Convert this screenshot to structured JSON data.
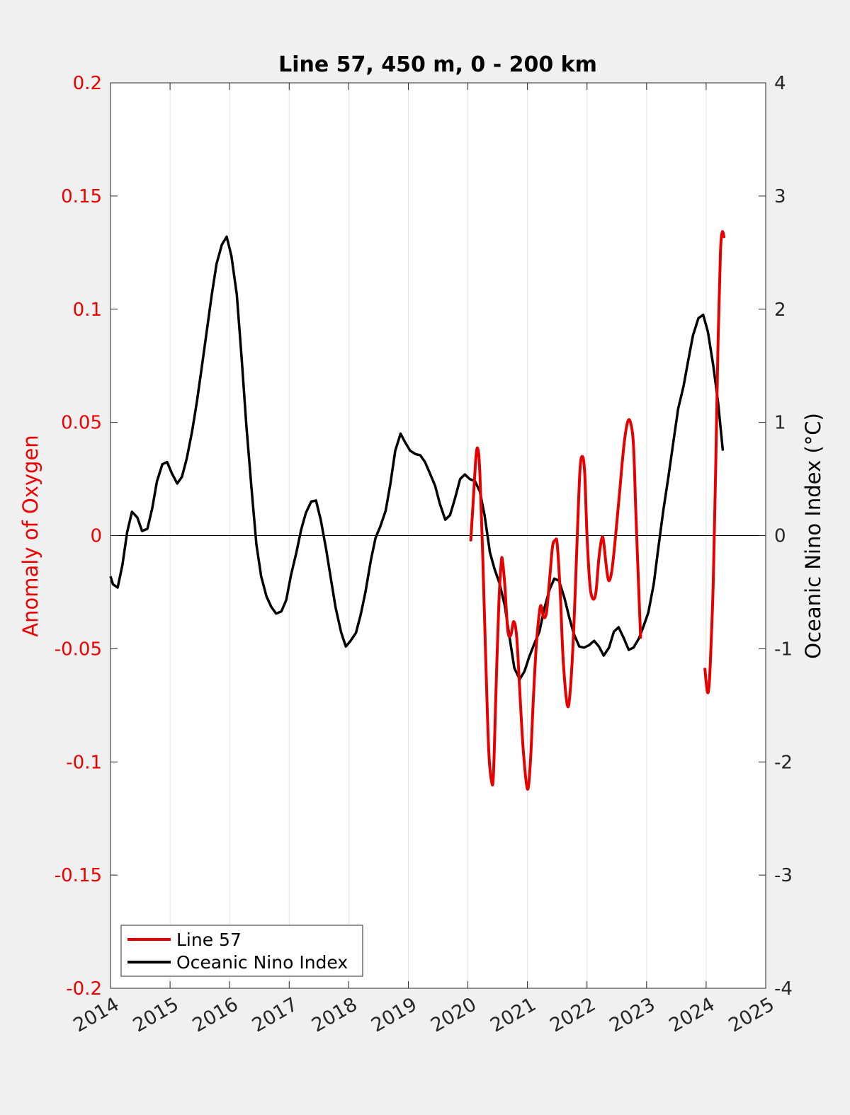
{
  "chart_data": {
    "type": "line",
    "title": "Line 57, 450 m, 0 - 200 km",
    "xlabel": "",
    "ylabel_left": "Anomaly of Oxygen",
    "ylabel_right": "Oceanic Nino Index (°C)",
    "xlim": [
      2014,
      2025
    ],
    "ylim_left": [
      -0.2,
      0.2
    ],
    "ylim_right": [
      -4,
      4
    ],
    "x_ticks": [
      "2014",
      "2015",
      "2016",
      "2017",
      "2018",
      "2019",
      "2020",
      "2021",
      "2022",
      "2023",
      "2024",
      "2025"
    ],
    "y_left_ticks": [
      "0.2",
      "0.15",
      "0.1",
      "0.05",
      "0",
      "-0.05",
      "-0.1",
      "-0.15",
      "-0.2"
    ],
    "y_right_ticks": [
      "4",
      "3",
      "2",
      "1",
      "0",
      "-1",
      "-2",
      "-3",
      "-4"
    ],
    "grid": "vertical",
    "legend_position": "bottom-left",
    "colors": {
      "left_axis": "#ee0000",
      "oni": "#000000",
      "line57": "#e60000",
      "background": "#f0f0f0",
      "plot_bg": "#ffffff"
    },
    "series": [
      {
        "name": "Line 57",
        "axis": "left",
        "segments": [
          [
            [
              2020.05,
              -0.002
            ],
            [
              2020.1,
              0.02
            ],
            [
              2020.14,
              0.036
            ],
            [
              2020.17,
              0.038
            ],
            [
              2020.2,
              0.028
            ],
            [
              2020.25,
              -0.01
            ],
            [
              2020.3,
              -0.055
            ],
            [
              2020.35,
              -0.095
            ],
            [
              2020.4,
              -0.109
            ],
            [
              2020.43,
              -0.105
            ],
            [
              2020.47,
              -0.07
            ],
            [
              2020.52,
              -0.03
            ],
            [
              2020.56,
              -0.012
            ],
            [
              2020.58,
              -0.011
            ],
            [
              2020.62,
              -0.022
            ],
            [
              2020.67,
              -0.042
            ],
            [
              2020.72,
              -0.044
            ],
            [
              2020.77,
              -0.038
            ],
            [
              2020.82,
              -0.045
            ],
            [
              2020.87,
              -0.068
            ],
            [
              2020.93,
              -0.095
            ],
            [
              2021.0,
              -0.112
            ],
            [
              2021.05,
              -0.1
            ],
            [
              2021.1,
              -0.072
            ],
            [
              2021.15,
              -0.048
            ],
            [
              2021.2,
              -0.034
            ],
            [
              2021.23,
              -0.031
            ],
            [
              2021.27,
              -0.036
            ],
            [
              2021.32,
              -0.034
            ],
            [
              2021.37,
              -0.02
            ],
            [
              2021.42,
              -0.005
            ],
            [
              2021.47,
              -0.002
            ],
            [
              2021.5,
              -0.004
            ],
            [
              2021.55,
              -0.025
            ],
            [
              2021.6,
              -0.055
            ],
            [
              2021.67,
              -0.075
            ],
            [
              2021.72,
              -0.068
            ],
            [
              2021.78,
              -0.04
            ],
            [
              2021.83,
              -0.005
            ],
            [
              2021.88,
              0.028
            ],
            [
              2021.92,
              0.035
            ],
            [
              2021.96,
              0.028
            ],
            [
              2022.0,
              0.0
            ],
            [
              2022.05,
              -0.022
            ],
            [
              2022.1,
              -0.028
            ],
            [
              2022.15,
              -0.025
            ],
            [
              2022.2,
              -0.01
            ],
            [
              2022.25,
              -0.001
            ],
            [
              2022.28,
              -0.003
            ],
            [
              2022.33,
              -0.015
            ],
            [
              2022.37,
              -0.02
            ],
            [
              2022.42,
              -0.015
            ],
            [
              2022.48,
              0.0
            ],
            [
              2022.55,
              0.02
            ],
            [
              2022.62,
              0.04
            ],
            [
              2022.68,
              0.05
            ],
            [
              2022.73,
              0.05
            ],
            [
              2022.78,
              0.04
            ],
            [
              2022.82,
              0.01
            ],
            [
              2022.87,
              -0.025
            ],
            [
              2022.9,
              -0.045
            ]
          ],
          [
            [
              2023.98,
              -0.059
            ],
            [
              2024.02,
              -0.069
            ],
            [
              2024.05,
              -0.066
            ],
            [
              2024.08,
              -0.05
            ],
            [
              2024.12,
              -0.02
            ],
            [
              2024.16,
              0.03
            ],
            [
              2024.2,
              0.085
            ],
            [
              2024.24,
              0.125
            ],
            [
              2024.27,
              0.134
            ],
            [
              2024.3,
              0.132
            ]
          ]
        ]
      },
      {
        "name": "Oceanic Nino Index",
        "axis": "right",
        "points": [
          [
            2014.0,
            -0.36
          ],
          [
            2014.04,
            -0.43
          ],
          [
            2014.12,
            -0.46
          ],
          [
            2014.2,
            -0.26
          ],
          [
            2014.28,
            0.03
          ],
          [
            2014.36,
            0.21
          ],
          [
            2014.45,
            0.16
          ],
          [
            2014.53,
            0.04
          ],
          [
            2014.62,
            0.06
          ],
          [
            2014.7,
            0.24
          ],
          [
            2014.78,
            0.48
          ],
          [
            2014.87,
            0.63
          ],
          [
            2014.95,
            0.65
          ],
          [
            2015.03,
            0.55
          ],
          [
            2015.12,
            0.46
          ],
          [
            2015.2,
            0.52
          ],
          [
            2015.28,
            0.68
          ],
          [
            2015.37,
            0.92
          ],
          [
            2015.45,
            1.18
          ],
          [
            2015.53,
            1.48
          ],
          [
            2015.62,
            1.82
          ],
          [
            2015.7,
            2.13
          ],
          [
            2015.78,
            2.4
          ],
          [
            2015.87,
            2.57
          ],
          [
            2015.95,
            2.64
          ],
          [
            2016.03,
            2.47
          ],
          [
            2016.12,
            2.13
          ],
          [
            2016.2,
            1.58
          ],
          [
            2016.28,
            0.98
          ],
          [
            2016.37,
            0.4
          ],
          [
            2016.45,
            -0.08
          ],
          [
            2016.53,
            -0.36
          ],
          [
            2016.62,
            -0.54
          ],
          [
            2016.7,
            -0.63
          ],
          [
            2016.78,
            -0.69
          ],
          [
            2016.87,
            -0.67
          ],
          [
            2016.95,
            -0.57
          ],
          [
            2017.03,
            -0.35
          ],
          [
            2017.12,
            -0.15
          ],
          [
            2017.2,
            0.05
          ],
          [
            2017.28,
            0.2
          ],
          [
            2017.37,
            0.3
          ],
          [
            2017.45,
            0.31
          ],
          [
            2017.53,
            0.14
          ],
          [
            2017.62,
            -0.12
          ],
          [
            2017.7,
            -0.38
          ],
          [
            2017.78,
            -0.64
          ],
          [
            2017.87,
            -0.85
          ],
          [
            2017.95,
            -0.98
          ],
          [
            2018.03,
            -0.93
          ],
          [
            2018.12,
            -0.86
          ],
          [
            2018.2,
            -0.7
          ],
          [
            2018.28,
            -0.5
          ],
          [
            2018.37,
            -0.22
          ],
          [
            2018.45,
            -0.02
          ],
          [
            2018.53,
            0.08
          ],
          [
            2018.62,
            0.22
          ],
          [
            2018.7,
            0.46
          ],
          [
            2018.78,
            0.75
          ],
          [
            2018.87,
            0.9
          ],
          [
            2018.95,
            0.82
          ],
          [
            2019.03,
            0.75
          ],
          [
            2019.12,
            0.72
          ],
          [
            2019.2,
            0.71
          ],
          [
            2019.28,
            0.65
          ],
          [
            2019.37,
            0.54
          ],
          [
            2019.45,
            0.44
          ],
          [
            2019.53,
            0.28
          ],
          [
            2019.62,
            0.14
          ],
          [
            2019.7,
            0.18
          ],
          [
            2019.78,
            0.32
          ],
          [
            2019.87,
            0.5
          ],
          [
            2019.95,
            0.54
          ],
          [
            2020.03,
            0.5
          ],
          [
            2020.12,
            0.48
          ],
          [
            2020.2,
            0.39
          ],
          [
            2020.28,
            0.18
          ],
          [
            2020.37,
            -0.15
          ],
          [
            2020.45,
            -0.3
          ],
          [
            2020.53,
            -0.42
          ],
          [
            2020.62,
            -0.62
          ],
          [
            2020.7,
            -0.9
          ],
          [
            2020.78,
            -1.17
          ],
          [
            2020.87,
            -1.27
          ],
          [
            2020.95,
            -1.2
          ],
          [
            2021.03,
            -1.07
          ],
          [
            2021.12,
            -0.95
          ],
          [
            2021.2,
            -0.85
          ],
          [
            2021.28,
            -0.65
          ],
          [
            2021.37,
            -0.48
          ],
          [
            2021.45,
            -0.38
          ],
          [
            2021.53,
            -0.4
          ],
          [
            2021.62,
            -0.55
          ],
          [
            2021.7,
            -0.72
          ],
          [
            2021.78,
            -0.87
          ],
          [
            2021.87,
            -0.98
          ],
          [
            2021.95,
            -0.99
          ],
          [
            2022.03,
            -0.97
          ],
          [
            2022.12,
            -0.93
          ],
          [
            2022.2,
            -0.98
          ],
          [
            2022.28,
            -1.06
          ],
          [
            2022.37,
            -0.99
          ],
          [
            2022.45,
            -0.85
          ],
          [
            2022.53,
            -0.81
          ],
          [
            2022.62,
            -0.91
          ],
          [
            2022.7,
            -1.01
          ],
          [
            2022.78,
            -0.99
          ],
          [
            2022.87,
            -0.91
          ],
          [
            2022.95,
            -0.8
          ],
          [
            2023.03,
            -0.68
          ],
          [
            2023.12,
            -0.43
          ],
          [
            2023.2,
            -0.1
          ],
          [
            2023.28,
            0.22
          ],
          [
            2023.37,
            0.53
          ],
          [
            2023.45,
            0.83
          ],
          [
            2023.53,
            1.12
          ],
          [
            2023.62,
            1.32
          ],
          [
            2023.7,
            1.55
          ],
          [
            2023.78,
            1.77
          ],
          [
            2023.87,
            1.92
          ],
          [
            2023.95,
            1.95
          ],
          [
            2024.03,
            1.8
          ],
          [
            2024.12,
            1.5
          ],
          [
            2024.2,
            1.18
          ],
          [
            2024.28,
            0.75
          ]
        ]
      }
    ]
  }
}
